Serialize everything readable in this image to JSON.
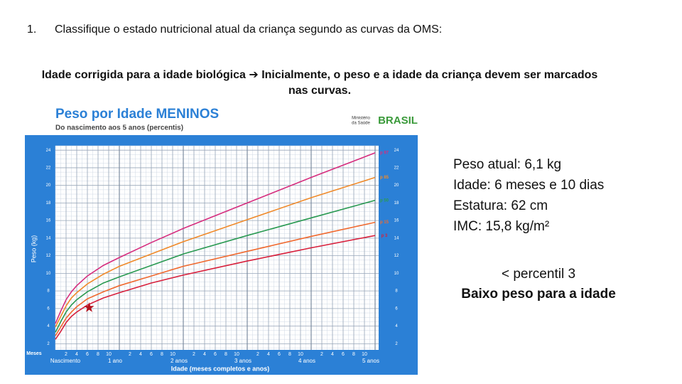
{
  "item": {
    "number": "1.",
    "text": "Classifique o estado nutricional atual da criança segundo as curvas da OMS:"
  },
  "note": "Idade corrigida para a idade biológica ➔ Inicialmente, o peso e a idade da criança devem ser marcados nas curvas.",
  "chart": {
    "type": "line",
    "title": "Peso por Idade MENINOS",
    "subtitle": "Do nascimento aos 5 anos (percentis)",
    "logo": {
      "ministry": [
        "Ministério",
        "da Saúde"
      ],
      "country": "BRASIL"
    },
    "y_label": "Peso (kg)",
    "x_label": "Idade (meses completos e anos)",
    "x_unit_label": "Meses",
    "x_start_label": "Nascimento",
    "x": [
      0,
      1,
      2,
      3,
      4,
      6,
      9,
      12,
      18,
      24,
      36,
      48,
      60
    ],
    "series": [
      {
        "name": "p 97",
        "color": "#d62d7e",
        "values": [
          4.3,
          5.7,
          7.0,
          7.9,
          8.6,
          9.7,
          10.9,
          11.8,
          13.5,
          15.1,
          18.0,
          20.9,
          23.7
        ]
      },
      {
        "name": "p 85",
        "color": "#f08a2a",
        "values": [
          3.9,
          5.1,
          6.3,
          7.2,
          7.8,
          8.8,
          9.9,
          10.8,
          12.2,
          13.6,
          16.1,
          18.6,
          20.9
        ]
      },
      {
        "name": "p 50",
        "color": "#2a9a52",
        "values": [
          3.3,
          4.5,
          5.6,
          6.4,
          7.0,
          7.9,
          8.9,
          9.6,
          10.9,
          12.2,
          14.3,
          16.3,
          18.3
        ]
      },
      {
        "name": "p 15",
        "color": "#f06a30",
        "values": [
          2.9,
          3.9,
          4.9,
          5.6,
          6.2,
          7.1,
          7.9,
          8.6,
          9.7,
          10.8,
          12.5,
          14.2,
          15.8
        ]
      },
      {
        "name": "p 3",
        "color": "#d8203c",
        "values": [
          2.5,
          3.4,
          4.4,
          5.1,
          5.6,
          6.4,
          7.2,
          7.8,
          8.9,
          9.8,
          11.4,
          12.9,
          14.3
        ]
      }
    ],
    "xlim": [
      0,
      60
    ],
    "ylim": [
      1.3,
      24.5
    ],
    "xticks": [
      2,
      4,
      6,
      8,
      10,
      {
        "value": 12,
        "label": "1 ano"
      },
      {
        "value": 14,
        "label": "2"
      },
      {
        "value": 16,
        "label": "4"
      },
      {
        "value": 18,
        "label": "6"
      },
      {
        "value": 20,
        "label": "8"
      },
      {
        "value": 22,
        "label": "10"
      },
      {
        "value": 24,
        "label": "2 anos"
      },
      {
        "value": 26,
        "label": "2"
      },
      {
        "value": 28,
        "label": "4"
      },
      {
        "value": 30,
        "label": "6"
      },
      {
        "value": 32,
        "label": "8"
      },
      {
        "value": 34,
        "label": "10"
      },
      {
        "value": 36,
        "label": "3 anos"
      },
      {
        "value": 38,
        "label": "2"
      },
      {
        "value": 40,
        "label": "4"
      },
      {
        "value": 42,
        "label": "6"
      },
      {
        "value": 44,
        "label": "8"
      },
      {
        "value": 46,
        "label": "10"
      },
      {
        "value": 48,
        "label": "4 anos"
      },
      {
        "value": 50,
        "label": "2"
      },
      {
        "value": 52,
        "label": "4"
      },
      {
        "value": 54,
        "label": "6"
      },
      {
        "value": 56,
        "label": "8"
      },
      {
        "value": 58,
        "label": "10"
      },
      {
        "value": 60,
        "label": "5 anos"
      }
    ],
    "yticks": [
      2,
      4,
      6,
      8,
      10,
      12,
      14,
      16,
      18,
      20,
      22,
      24
    ],
    "grid": true,
    "point": {
      "x": 6.33,
      "y": 6.1,
      "color": "#b3101c"
    }
  },
  "info": {
    "lines": [
      "Peso atual: 6,1 kg",
      "Idade: 6 meses e 10 dias",
      "Estatura: 62 cm",
      "IMC: 15,8 kg/m²"
    ],
    "result": "< percentil 3",
    "classification": "Baixo peso para a idade"
  }
}
